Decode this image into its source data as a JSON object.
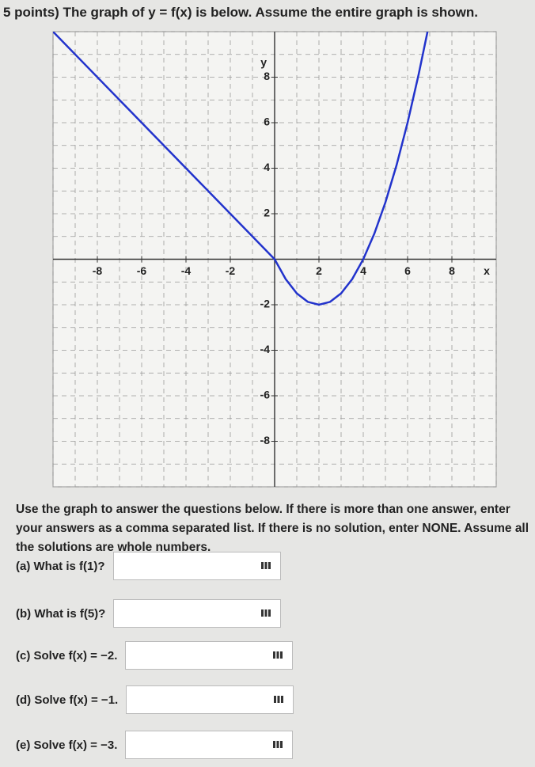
{
  "header": {
    "title": "5 points) The graph of y = f(x) is below. Assume the entire graph is shown."
  },
  "graph": {
    "xlim": [
      -10,
      10
    ],
    "ylim": [
      -10,
      10
    ],
    "xticks": [
      -8,
      -6,
      -4,
      -2,
      2,
      4,
      6,
      8
    ],
    "yticks": [
      -8,
      -6,
      -4,
      -2,
      2,
      4,
      6,
      8
    ],
    "x_label": "x",
    "y_label": "y",
    "color": "#2233cc",
    "curve": {
      "x": [
        -10,
        0,
        0.5,
        1,
        1.5,
        2,
        2.5,
        3,
        3.5,
        4,
        4.5,
        5,
        5.5,
        6,
        6.5,
        6.9
      ],
      "y": [
        10,
        0,
        -0.875,
        -1.5,
        -1.875,
        -2,
        -1.875,
        -1.5,
        -0.875,
        0,
        1.125,
        2.5,
        4.125,
        6,
        8.125,
        10
      ]
    }
  },
  "instructions": "Use the graph to answer the questions below. If there is more than one answer, enter your answers as a comma separated list. If there is no solution, enter NONE. Assume all the solutions are whole numbers.",
  "questions": [
    {
      "label": "(a) What is f(1)?"
    },
    {
      "label": "(b) What is f(5)?"
    },
    {
      "label": "(c) Solve f(x) = −2."
    },
    {
      "label": "(d) Solve f(x) = −1."
    },
    {
      "label": "(e) Solve f(x) = −3."
    }
  ]
}
